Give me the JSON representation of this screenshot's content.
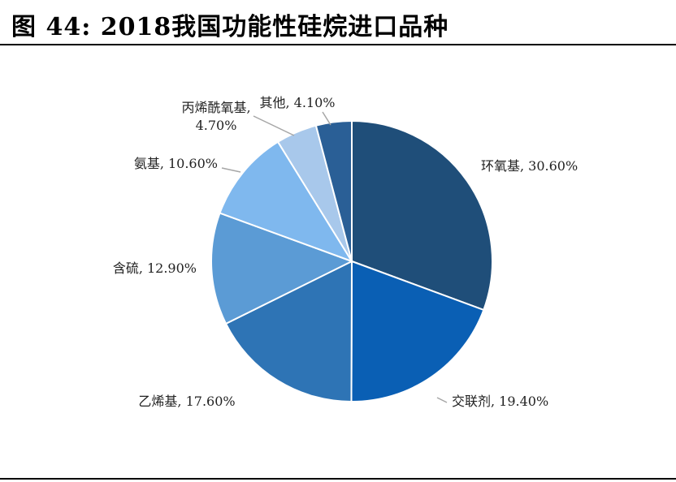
{
  "figure": {
    "title": "图 44: 2018我国功能性硅烷进口品种"
  },
  "chart_data": {
    "type": "pie",
    "start_angle_deg": 0,
    "direction": "clockwise",
    "slices": [
      {
        "name": "环氧基",
        "value": 30.6,
        "label": "环氧基, 30.60%",
        "color": "#1f4e79"
      },
      {
        "name": "交联剂",
        "value": 19.4,
        "label": "交联剂, 19.40%",
        "color": "#0a5fb4"
      },
      {
        "name": "乙烯基",
        "value": 17.6,
        "label": "乙烯基, 17.60%",
        "color": "#2e74b5"
      },
      {
        "name": "含硫",
        "value": 12.9,
        "label": "含硫, 12.90%",
        "color": "#5b9bd5"
      },
      {
        "name": "氨基",
        "value": 10.6,
        "label": "氨基, 10.60%",
        "color": "#7fb8ee"
      },
      {
        "name": "丙烯酰氧基",
        "value": 4.7,
        "label_lines": [
          "丙烯酰氧基,",
          "4.70%"
        ],
        "color": "#a8c8eb"
      },
      {
        "name": "其他",
        "value": 4.1,
        "label": "其他, 4.10%",
        "color": "#2a5f96"
      }
    ]
  }
}
